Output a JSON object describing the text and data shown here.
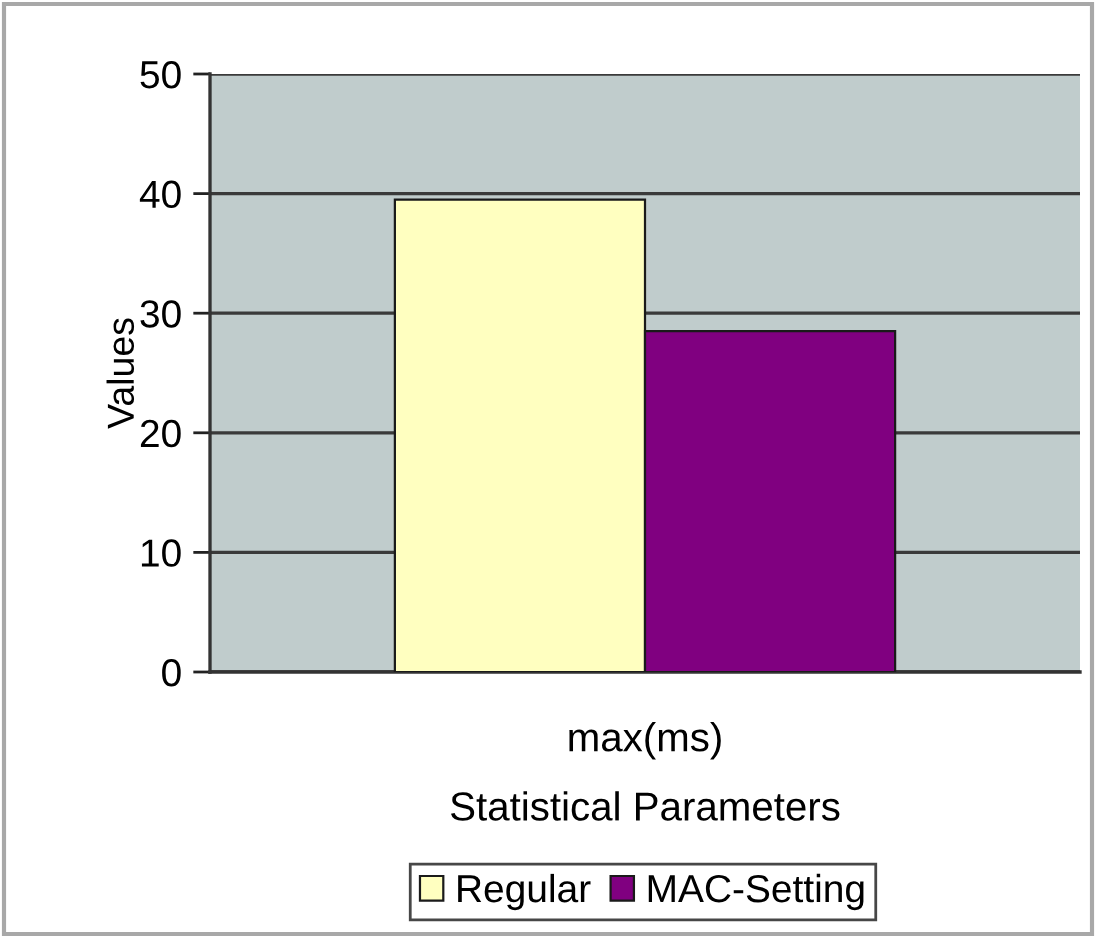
{
  "chart_data": {
    "type": "bar",
    "categories": [
      "max(ms)"
    ],
    "series": [
      {
        "name": "Regular",
        "color": "#ffffc0",
        "values": [
          39.5
        ]
      },
      {
        "name": "MAC-Setting",
        "color": "#800080",
        "values": [
          28.5
        ]
      }
    ],
    "xlabel": "Statistical Parameters",
    "ylabel": "Values",
    "ylim": [
      0,
      50
    ],
    "yticks": [
      0,
      10,
      20,
      30,
      40,
      50
    ],
    "grid": "y",
    "legend": "bottom"
  }
}
